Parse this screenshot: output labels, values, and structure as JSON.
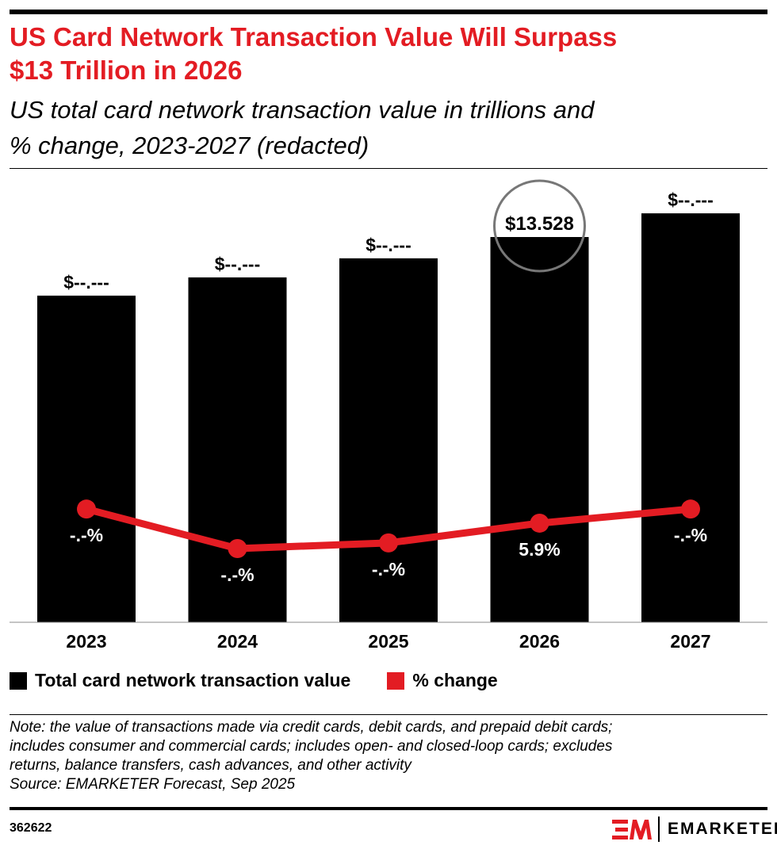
{
  "header": {
    "title_line1": "US Card Network Transaction Value Will Surpass",
    "title_line2": "$13 Trillion in 2026",
    "subtitle_line1": "US total card network transaction value in trillions and",
    "subtitle_line2": "% change, 2023-2027 (redacted)"
  },
  "colors": {
    "bar": "#000000",
    "line": "#e31c23",
    "title": "#e31c23",
    "highlight_circle": "#777777"
  },
  "chart_data": {
    "type": "bar+line",
    "categories": [
      "2023",
      "2024",
      "2025",
      "2026",
      "2027"
    ],
    "series": [
      {
        "name": "Total card network transaction value",
        "type": "bar",
        "values": [
          11.47,
          12.11,
          12.78,
          13.528,
          14.36
        ],
        "labels": [
          "$--.---",
          "$--.---",
          "$--.---",
          "$13.528",
          "$--.---"
        ]
      },
      {
        "name": "% change",
        "type": "line",
        "values": [
          6.4,
          5.0,
          5.2,
          5.9,
          6.4
        ],
        "labels": [
          "-.-%",
          "-.-%",
          "-.-%",
          "5.9%",
          "-.-%"
        ]
      }
    ],
    "highlighted_category": "2026",
    "bar_ylim": [
      0,
      16
    ],
    "grid": false,
    "legend_position": "bottom-left"
  },
  "legend": {
    "items": [
      "Total card network transaction value",
      "% change"
    ]
  },
  "footer": {
    "note_lines": [
      "Note: the value of transactions made via credit cards, debit cards, and prepaid debit cards;",
      "includes consumer and commercial cards; includes open- and closed-loop cards; excludes",
      "returns, balance transfers, cash advances, and other activity"
    ],
    "source": "Source: EMARKETER Forecast, Sep 2025",
    "chart_id": "362622",
    "brand": "EMARKETER"
  }
}
